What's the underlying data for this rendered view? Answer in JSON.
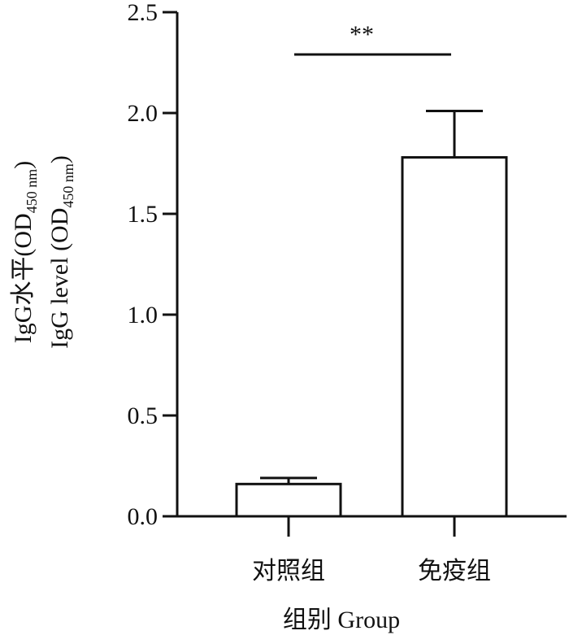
{
  "chart_data": {
    "type": "bar",
    "y_label": [
      [
        "IgG水平(OD",
        "450 nm",
        ")"
      ],
      [
        "IgG level (OD",
        "450 nm",
        ")"
      ]
    ],
    "x_label": "组别  Group",
    "categories": [
      "对照组",
      "免疫组"
    ],
    "values": [
      0.16,
      1.78
    ],
    "errors": [
      0.03,
      0.23
    ],
    "color": "#ffffff",
    "ylim": [
      0,
      2.5
    ],
    "yticks": [
      {
        "value": 0,
        "label": "0.0"
      },
      0.5,
      {
        "value": 1,
        "label": "1.0"
      },
      1.5,
      {
        "value": 2,
        "label": "2.0"
      },
      2.5
    ],
    "annotation": "**"
  }
}
